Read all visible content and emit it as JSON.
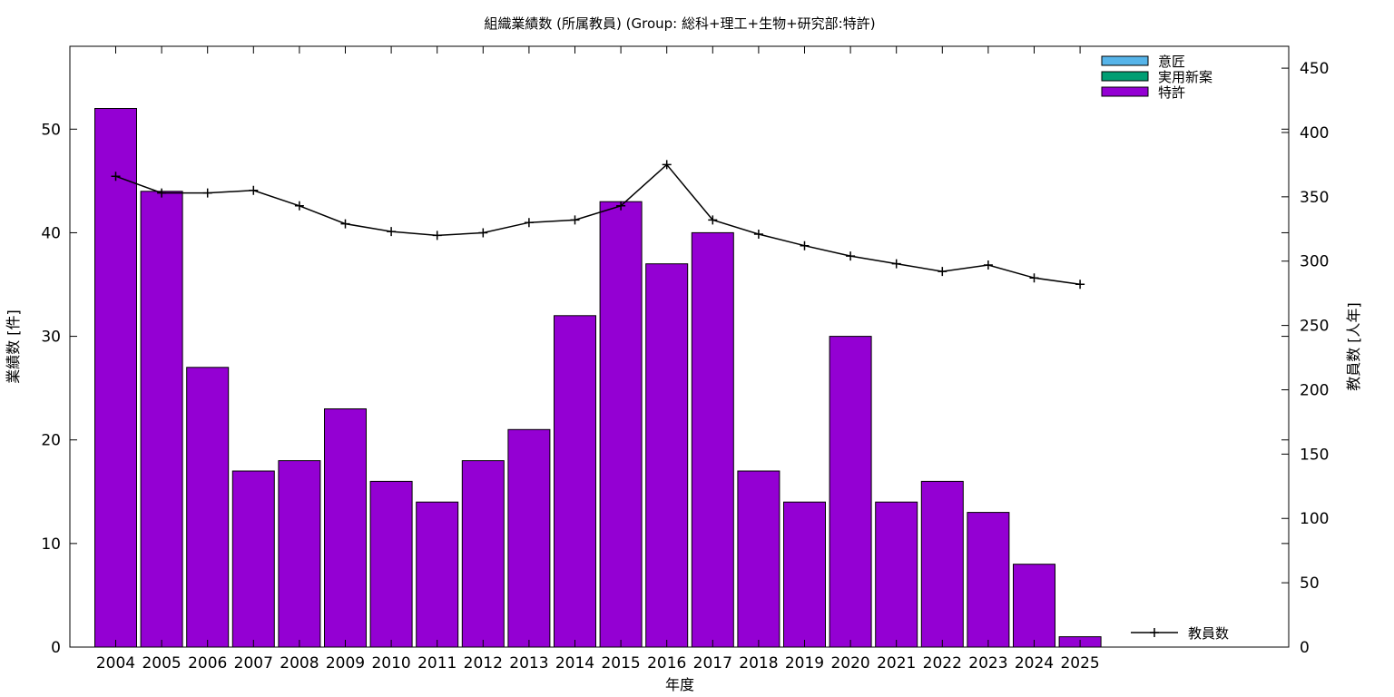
{
  "chart_data": {
    "type": "bar",
    "title": "組織業績数 (所属教員) (Group: 総科+理工+生物+研究部:特許)",
    "xlabel": "年度",
    "ylabel": "業績数 [件]",
    "y2label": "教員数 [人年]",
    "categories": [
      "2004",
      "2005",
      "2006",
      "2007",
      "2008",
      "2009",
      "2010",
      "2011",
      "2012",
      "2013",
      "2014",
      "2015",
      "2016",
      "2017",
      "2018",
      "2019",
      "2020",
      "2021",
      "2022",
      "2023",
      "2024",
      "2025"
    ],
    "ylim": [
      0,
      58
    ],
    "y2lim": [
      0,
      467
    ],
    "yticks": [
      0,
      10,
      20,
      30,
      40,
      50
    ],
    "y2ticks": [
      0,
      50,
      100,
      150,
      200,
      250,
      300,
      350,
      400,
      450
    ],
    "grid": false,
    "legend_position": "top-right",
    "series": [
      {
        "name": "意匠",
        "kind": "bar",
        "color": "#56b4e9",
        "values": [
          0,
          0,
          0,
          0,
          0,
          0,
          0,
          0,
          0,
          0,
          0,
          0,
          0,
          0,
          0,
          0,
          0,
          0,
          0,
          0,
          0,
          0
        ]
      },
      {
        "name": "実用新案",
        "kind": "bar",
        "color": "#009e73",
        "values": [
          0,
          0,
          0,
          0,
          0,
          0,
          0,
          0,
          0,
          0,
          0,
          0,
          0,
          0,
          0,
          0,
          0,
          0,
          0,
          0,
          0,
          0
        ]
      },
      {
        "name": "特許",
        "kind": "bar",
        "color": "#9400d3",
        "values": [
          52,
          44,
          27,
          17,
          18,
          23,
          16,
          14,
          18,
          21,
          32,
          43,
          37,
          40,
          17,
          14,
          30,
          14,
          16,
          13,
          8,
          1
        ]
      },
      {
        "name": "教員数",
        "kind": "line",
        "axis": "y2",
        "color": "#000000",
        "values": [
          366,
          353,
          353,
          355,
          343,
          329,
          323,
          320,
          322,
          330,
          332,
          343,
          375,
          332,
          321,
          312,
          304,
          298,
          292,
          297,
          287,
          282
        ]
      }
    ]
  }
}
